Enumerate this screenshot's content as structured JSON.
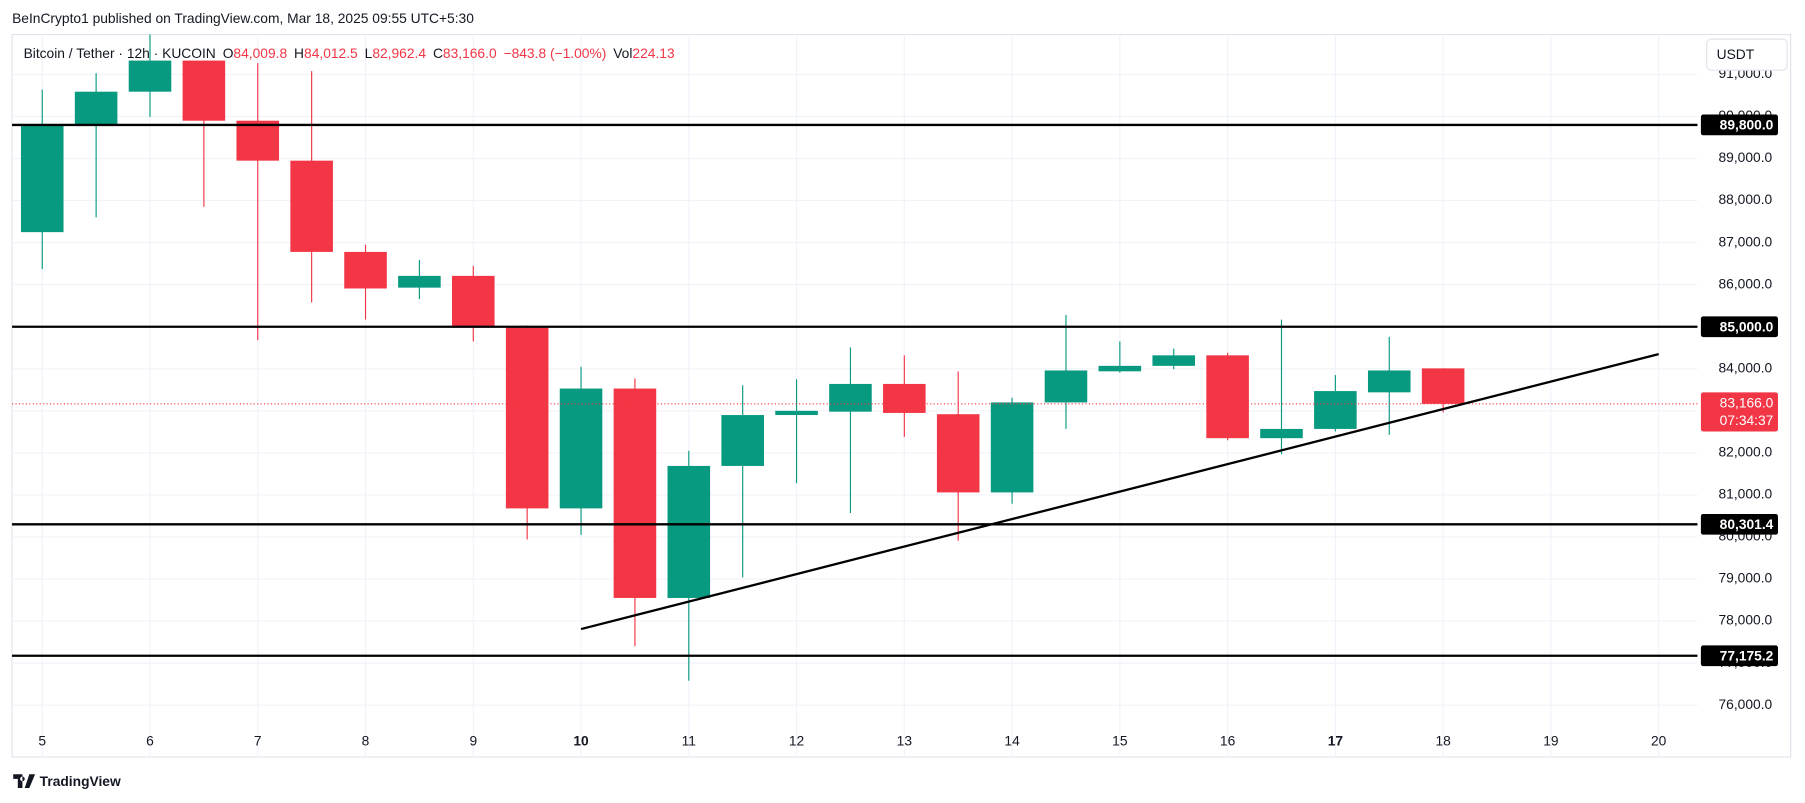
{
  "header": {
    "published": "BeInCrypto1 published on TradingView.com, Mar 18, 2025 09:55 UTC+5:30",
    "symbol": "Bitcoin / Tether · 12h · KUCOIN",
    "fields": [
      {
        "key": "O",
        "value": "84,009.8"
      },
      {
        "key": "H",
        "value": "84,012.5"
      },
      {
        "key": "L",
        "value": "82,962.4"
      },
      {
        "key": "C",
        "value": "83,166.0"
      }
    ],
    "change": "−843.8 (−1.00%)",
    "volume": {
      "key": "Vol",
      "value": "224.13"
    }
  },
  "footer": {
    "brand": "TradingView"
  },
  "chart_data": {
    "type": "candlestick",
    "x": [
      5,
      5.5,
      6,
      6.5,
      7,
      7.5,
      8,
      8.5,
      9,
      9.5,
      10,
      10.5,
      11,
      11.5,
      12,
      12.5,
      13,
      13.5,
      14,
      14.5,
      15,
      15.5,
      16,
      16.5,
      17,
      17.5,
      18
    ],
    "open": [
      87250,
      89800,
      90590,
      91330,
      89900,
      88950,
      86780,
      85930,
      86210,
      84980,
      80680,
      83530,
      78550,
      81690,
      82900,
      82980,
      83640,
      82920,
      81060,
      83200,
      83940,
      84070,
      84320,
      82350,
      82570,
      83440,
      84009.8
    ],
    "high": [
      90640,
      91030,
      91950,
      91330,
      91270,
      91080,
      86950,
      86590,
      86450,
      85030,
      84050,
      83770,
      82050,
      83610,
      83750,
      84510,
      84320,
      83940,
      83310,
      85280,
      84650,
      84480,
      84380,
      85170,
      83850,
      84760,
      84012.5
    ],
    "low": [
      86370,
      87600,
      89990,
      87850,
      84680,
      85580,
      85170,
      85660,
      84650,
      79940,
      80050,
      77400,
      76580,
      79040,
      81280,
      80570,
      82380,
      79910,
      80790,
      82570,
      83910,
      83990,
      82300,
      81970,
      82510,
      82430,
      82962.4
    ],
    "close": [
      89800,
      90590,
      91330,
      89900,
      88950,
      86780,
      85910,
      86210,
      84980,
      80680,
      83530,
      78550,
      81690,
      82900,
      83000,
      83640,
      82950,
      81060,
      83200,
      83960,
      84070,
      84320,
      82350,
      82570,
      83470,
      83960,
      83166
    ],
    "up_color": "#089981",
    "down_color": "#f23645",
    "xlim": [
      4.72,
      20.36
    ],
    "xticks": [
      5,
      6,
      7,
      8,
      9,
      10,
      11,
      12,
      13,
      14,
      15,
      16,
      17,
      18,
      19,
      20
    ],
    "bold_xticks": [
      10,
      17
    ],
    "ylim": [
      74850,
      91950
    ],
    "yticks": [
      {
        "value": 76000,
        "label": "76,000.0"
      },
      {
        "value": 77000,
        "label": "77,000.0"
      },
      {
        "value": 78000,
        "label": "78,000.0"
      },
      {
        "value": 79000,
        "label": "79,000.0"
      },
      {
        "value": 80000,
        "label": "80,000.0"
      },
      {
        "value": 81000,
        "label": "81,000.0"
      },
      {
        "value": 82000,
        "label": "82,000.0"
      },
      {
        "value": 83000,
        "label": "83,000.0"
      },
      {
        "value": 84000,
        "label": "84,000.0"
      },
      {
        "value": 85000,
        "label": "85,000.0"
      },
      {
        "value": 86000,
        "label": "86,000.0"
      },
      {
        "value": 87000,
        "label": "87,000.0"
      },
      {
        "value": 88000,
        "label": "88,000.0"
      },
      {
        "value": 89000,
        "label": "89,000.0"
      },
      {
        "value": 90000,
        "label": "90,000.0"
      },
      {
        "value": 91000,
        "label": "91,000.0"
      }
    ],
    "grid": true,
    "axis_unit": "USDT",
    "levels": [
      {
        "value": 89800,
        "label": "89,800.0"
      },
      {
        "value": 85000,
        "label": "85,000.0"
      },
      {
        "value": 80301.4,
        "label": "80,301.4"
      },
      {
        "value": 77175.2,
        "label": "77,175.2"
      }
    ],
    "trendline": {
      "x": [
        10,
        20
      ],
      "values": [
        77810,
        84350
      ]
    },
    "last_price": {
      "value": 83166,
      "label": "83,166.0",
      "countdown": "07:34:37"
    }
  }
}
